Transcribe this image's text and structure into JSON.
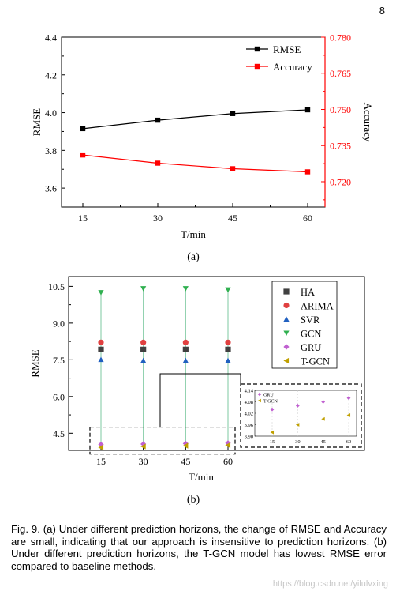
{
  "page_number": "8",
  "caption": "Fig. 9. (a) Under different prediction horizons, the change of RMSE and Accuracy are small, indicating that our approach is insensitive to prediction horizons. (b) Under different prediction horizons, the T-GCN model has lowest RMSE error compared to baseline methods.",
  "watermark": "https://blog.csdn.net/yilulvxing",
  "colors": {
    "rmse_line": "#000000",
    "accuracy_line": "#ff0000",
    "accent_right_axis": "#ff0000"
  },
  "chart_data": [
    {
      "type": "line",
      "panel_label": "(a)",
      "x": [
        15,
        30,
        45,
        60
      ],
      "x_ticks": [
        "15",
        "30",
        "45",
        "60"
      ],
      "xlabel": "T/min",
      "ylabel": "RMSE",
      "y2label": "Accuracy",
      "ylim": [
        3.5,
        4.4
      ],
      "y_ticks": [
        "3.6",
        "3.8",
        "4.0",
        "4.2",
        "4.4"
      ],
      "y2lim": [
        0.7095,
        0.78
      ],
      "y2_ticks": [
        "0.720",
        "0.735",
        "0.750",
        "0.765",
        "0.780"
      ],
      "legend_position": "top-right",
      "series": [
        {
          "name": "RMSE",
          "axis": "left",
          "color": "#000000",
          "marker": "square",
          "values": [
            3.915,
            3.96,
            3.995,
            4.015
          ]
        },
        {
          "name": "Accuracy",
          "axis": "right",
          "color": "#ff0000",
          "marker": "square",
          "values": [
            0.7311,
            0.7277,
            0.7254,
            0.7241
          ]
        }
      ]
    },
    {
      "type": "scatter",
      "panel_label": "(b)",
      "x": [
        15,
        30,
        45,
        60
      ],
      "x_ticks": [
        "15",
        "30",
        "45",
        "60"
      ],
      "xlabel": "T/min",
      "ylabel": "RMSE",
      "ylim": [
        3.8,
        10.9
      ],
      "y_ticks": [
        "4.5",
        "6.0",
        "7.5",
        "9.0",
        "10.5"
      ],
      "legend_position": "top-right",
      "series": [
        {
          "name": "HA",
          "color": "#404040",
          "marker": "square",
          "values": [
            7.92,
            7.92,
            7.92,
            7.92
          ]
        },
        {
          "name": "ARIMA",
          "color": "#e04040",
          "marker": "circle",
          "values": [
            8.21,
            8.21,
            8.21,
            8.21
          ]
        },
        {
          "name": "SVR",
          "color": "#2060c0",
          "marker": "triangle-up",
          "values": [
            7.51,
            7.47,
            7.47,
            7.47
          ]
        },
        {
          "name": "GCN",
          "color": "#30b050",
          "marker": "triangle-down",
          "values": [
            10.25,
            10.41,
            10.41,
            10.36
          ]
        },
        {
          "name": "GRU",
          "color": "#c060d0",
          "marker": "diamond",
          "values": [
            4.04,
            4.06,
            4.08,
            4.1
          ]
        },
        {
          "name": "T-GCN",
          "color": "#c0a000",
          "marker": "triangle-left",
          "values": [
            3.92,
            3.96,
            3.99,
            4.01
          ]
        }
      ],
      "inset": {
        "ylim": [
          3.9,
          4.14
        ],
        "y_ticks": [
          "3.90",
          "3.96",
          "4.02",
          "4.08",
          "4.14"
        ],
        "x_ticks": [
          "15",
          "30",
          "45",
          "60"
        ],
        "legend": [
          "GRU",
          "T-GCN"
        ]
      }
    }
  ]
}
